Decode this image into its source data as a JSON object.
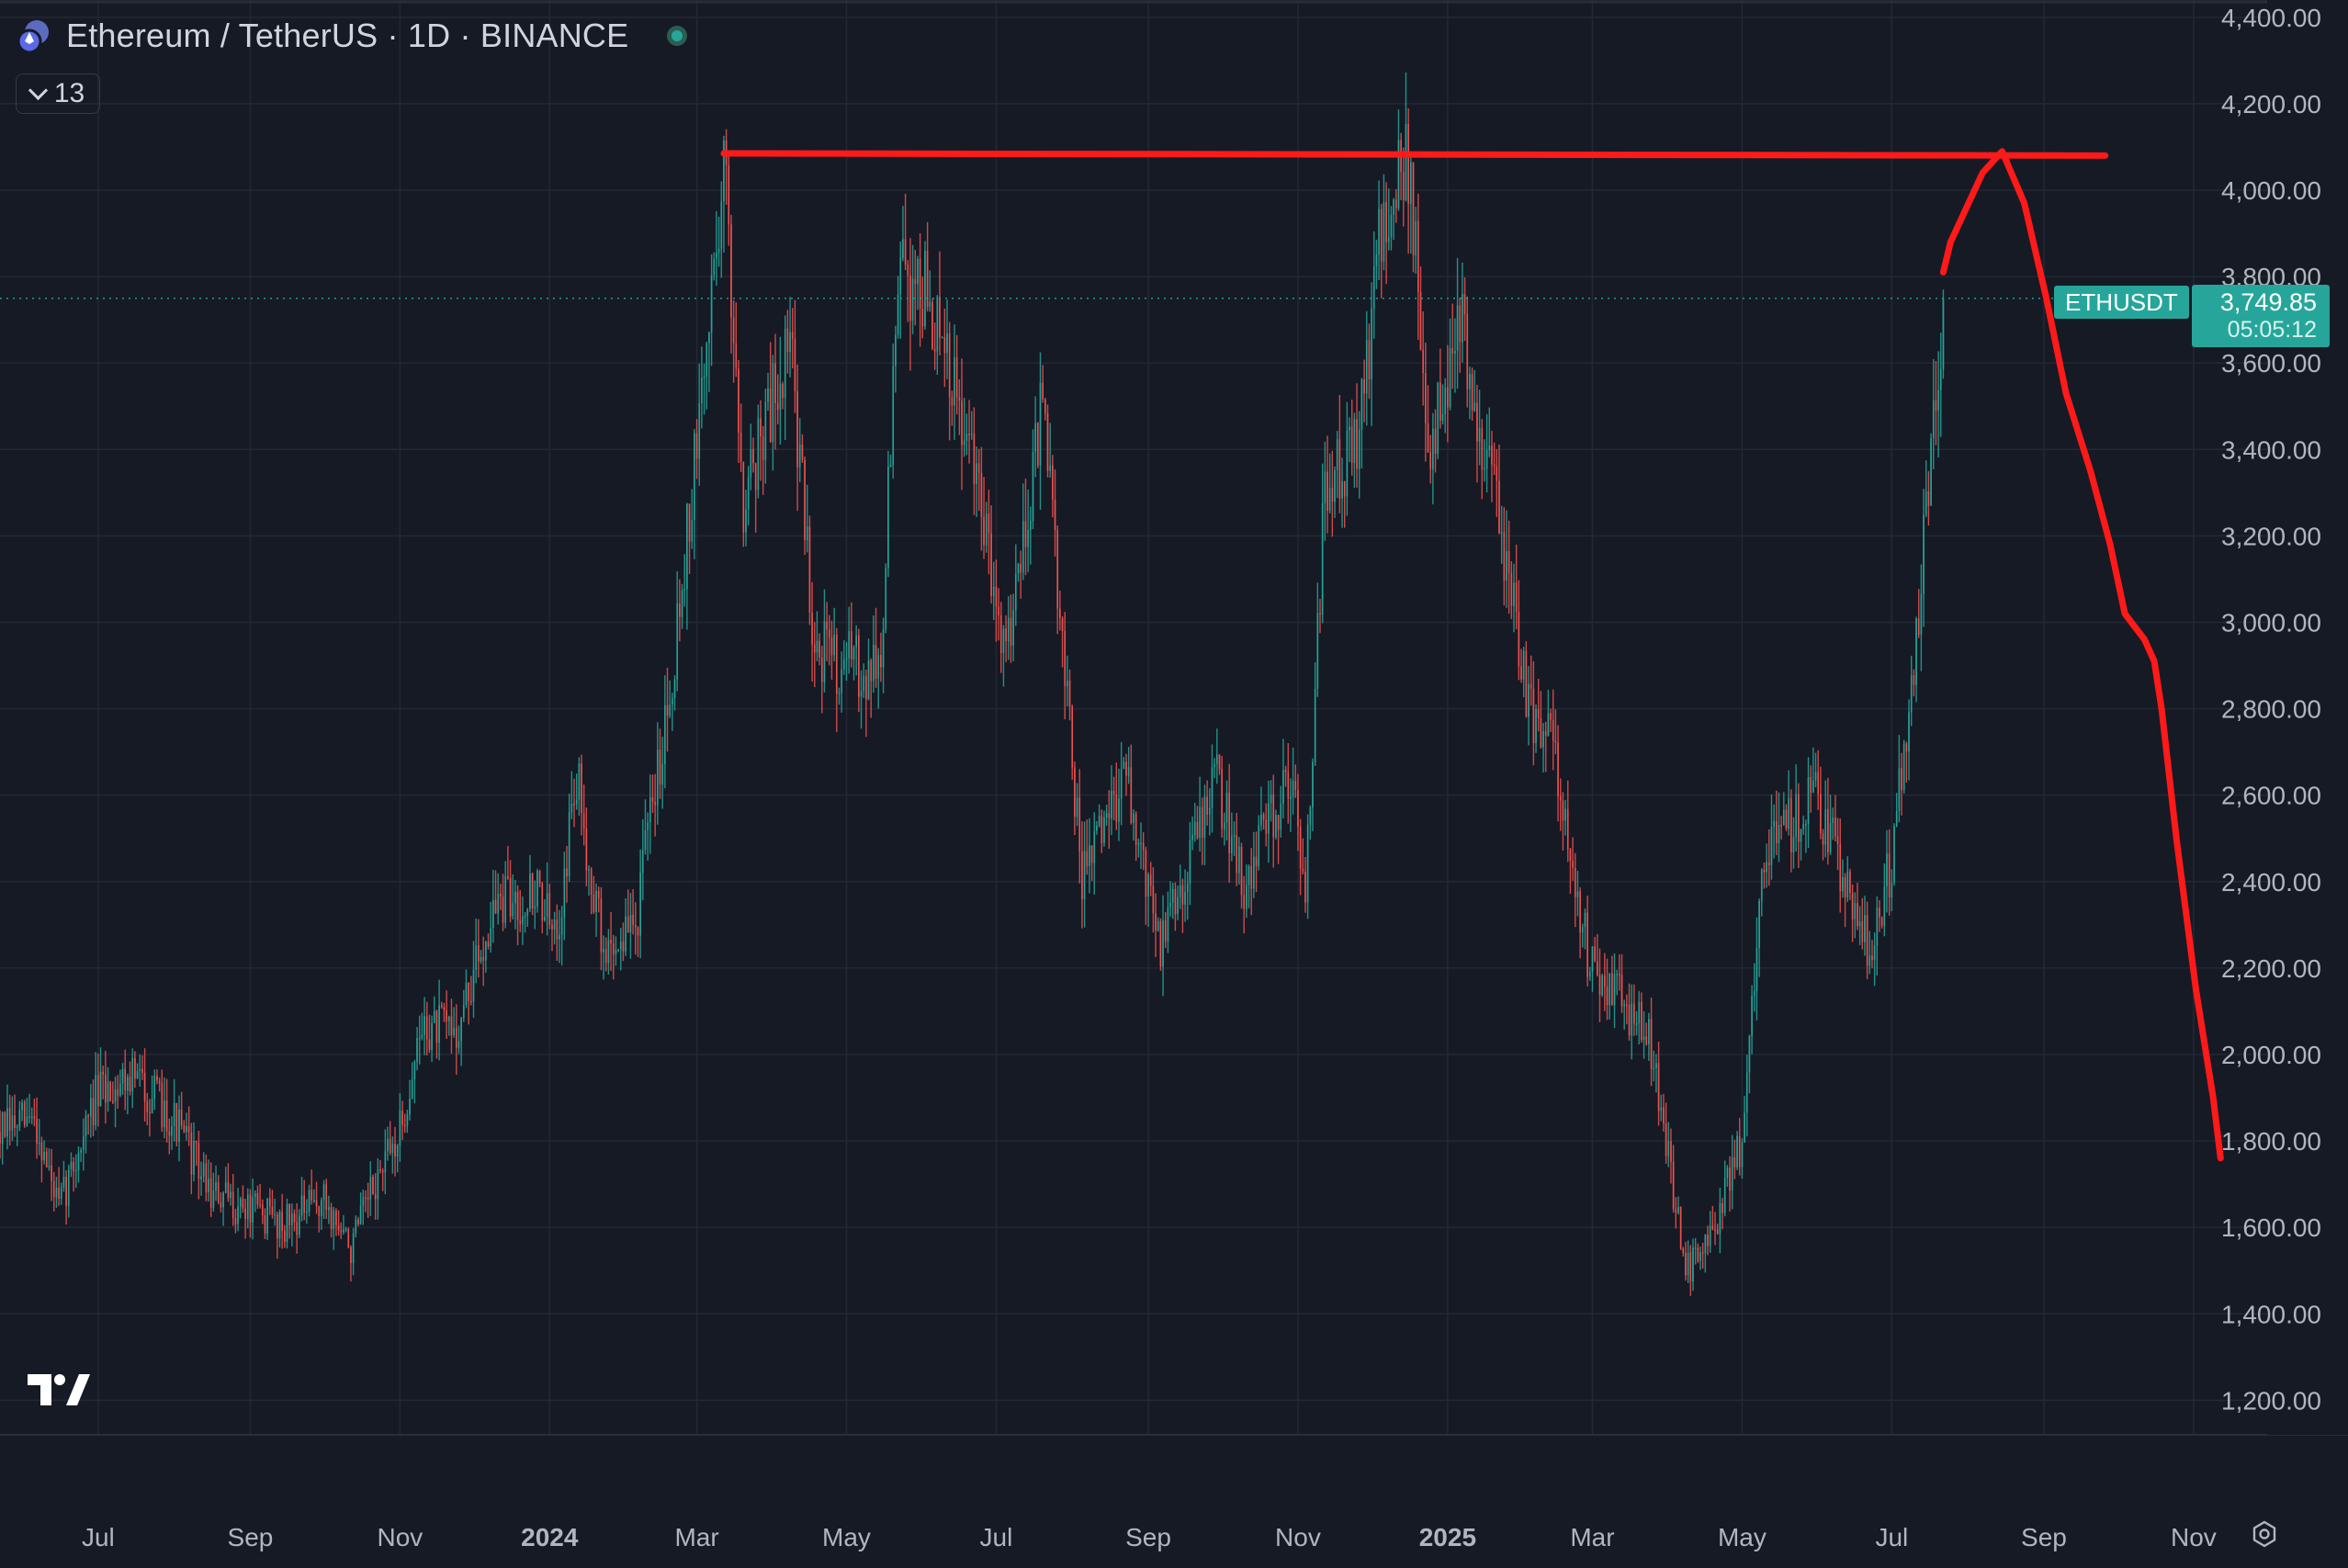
{
  "header": {
    "title": "Ethereum / TetherUS · 1D · BINANCE",
    "indicator_count": "13"
  },
  "price_label": {
    "symbol": "ETHUSDT",
    "price": "3,749.85",
    "countdown": "05:05:12"
  },
  "colors": {
    "background": "#161a25",
    "grid": "#242834",
    "up": "#26a69a",
    "down": "#ef5350",
    "drawing": "#ff1a1a",
    "axis_text": "#b2b5be"
  },
  "chart_data": {
    "type": "candlestick",
    "interval": "1D",
    "exchange": "BINANCE",
    "last_price": 3749.85,
    "y_axis": {
      "range": [
        1120,
        4440
      ],
      "ticks": [
        1200,
        1400,
        1600,
        1800,
        2000,
        2200,
        2400,
        2600,
        2800,
        3000,
        3200,
        3400,
        3600,
        3800,
        4000,
        4200,
        4400
      ],
      "tick_labels": [
        "1,200.00",
        "1,400.00",
        "1,600.00",
        "1,800.00",
        "2,000.00",
        "2,200.00",
        "2,400.00",
        "2,600.00",
        "2,800.00",
        "3,000.00",
        "3,200.00",
        "3,400.00",
        "3,600.00",
        "3,800.00",
        "4,000.00",
        "4,200.00",
        "4,400.00"
      ]
    },
    "x_axis": {
      "range": [
        "2023-05-22",
        "2025-12-01"
      ],
      "ticks": [
        {
          "date": "2023-07-01",
          "label": "Jul",
          "bold": false
        },
        {
          "date": "2023-09-01",
          "label": "Sep",
          "bold": false
        },
        {
          "date": "2023-11-01",
          "label": "Nov",
          "bold": false
        },
        {
          "date": "2024-01-01",
          "label": "2024",
          "bold": true
        },
        {
          "date": "2024-03-01",
          "label": "Mar",
          "bold": false
        },
        {
          "date": "2024-05-01",
          "label": "May",
          "bold": false
        },
        {
          "date": "2024-07-01",
          "label": "Jul",
          "bold": false
        },
        {
          "date": "2024-09-01",
          "label": "Sep",
          "bold": false
        },
        {
          "date": "2024-11-01",
          "label": "Nov",
          "bold": false
        },
        {
          "date": "2025-01-01",
          "label": "2025",
          "bold": true
        },
        {
          "date": "2025-03-01",
          "label": "Mar",
          "bold": false
        },
        {
          "date": "2025-05-01",
          "label": "May",
          "bold": false
        },
        {
          "date": "2025-07-01",
          "label": "Jul",
          "bold": false
        },
        {
          "date": "2025-09-01",
          "label": "Sep",
          "bold": false
        },
        {
          "date": "2025-11-01",
          "label": "Nov",
          "bold": false
        }
      ]
    },
    "series": [
      {
        "kind": "close_path",
        "points": [
          [
            "2023-05-22",
            1820
          ],
          [
            "2023-06-05",
            1850
          ],
          [
            "2023-06-15",
            1640
          ],
          [
            "2023-06-30",
            1900
          ],
          [
            "2023-07-14",
            1960
          ],
          [
            "2023-08-01",
            1850
          ],
          [
            "2023-08-17",
            1670
          ],
          [
            "2023-09-01",
            1640
          ],
          [
            "2023-09-15",
            1610
          ],
          [
            "2023-10-01",
            1660
          ],
          [
            "2023-10-12",
            1550
          ],
          [
            "2023-10-22",
            1700
          ],
          [
            "2023-11-01",
            1820
          ],
          [
            "2023-11-10",
            2060
          ],
          [
            "2023-11-25",
            2060
          ],
          [
            "2023-12-09",
            2340
          ],
          [
            "2023-12-28",
            2380
          ],
          [
            "2024-01-03",
            2250
          ],
          [
            "2024-01-12",
            2640
          ],
          [
            "2024-01-23",
            2230
          ],
          [
            "2024-02-05",
            2300
          ],
          [
            "2024-02-20",
            2900
          ],
          [
            "2024-03-01",
            3400
          ],
          [
            "2024-03-12",
            4070
          ],
          [
            "2024-03-20",
            3300
          ],
          [
            "2024-04-08",
            3650
          ],
          [
            "2024-04-18",
            2950
          ],
          [
            "2024-05-01",
            2900
          ],
          [
            "2024-05-15",
            2900
          ],
          [
            "2024-05-22",
            3800
          ],
          [
            "2024-06-01",
            3780
          ],
          [
            "2024-06-20",
            3400
          ],
          [
            "2024-07-05",
            2950
          ],
          [
            "2024-07-20",
            3500
          ],
          [
            "2024-08-05",
            2400
          ],
          [
            "2024-08-22",
            2650
          ],
          [
            "2024-09-06",
            2250
          ],
          [
            "2024-09-28",
            2650
          ],
          [
            "2024-10-10",
            2400
          ],
          [
            "2024-10-29",
            2650
          ],
          [
            "2024-11-04",
            2400
          ],
          [
            "2024-11-12",
            3300
          ],
          [
            "2024-11-25",
            3400
          ],
          [
            "2024-12-06",
            3950
          ],
          [
            "2024-12-16",
            4050
          ],
          [
            "2024-12-25",
            3400
          ],
          [
            "2025-01-06",
            3700
          ],
          [
            "2025-01-20",
            3300
          ],
          [
            "2025-02-03",
            2800
          ],
          [
            "2025-02-14",
            2700
          ],
          [
            "2025-02-28",
            2200
          ],
          [
            "2025-03-24",
            2050
          ],
          [
            "2025-04-08",
            1500
          ],
          [
            "2025-04-20",
            1600
          ],
          [
            "2025-05-01",
            1800
          ],
          [
            "2025-05-09",
            2450
          ],
          [
            "2025-05-31",
            2600
          ],
          [
            "2025-06-22",
            2250
          ],
          [
            "2025-07-01",
            2450
          ],
          [
            "2025-07-11",
            2950
          ],
          [
            "2025-07-22",
            3750
          ]
        ]
      }
    ],
    "annotations": [
      {
        "kind": "horizontal_line",
        "from": [
          "2024-03-12",
          4085
        ],
        "to": [
          "2025-09-26",
          4080
        ]
      },
      {
        "kind": "freehand_path",
        "points": [
          [
            "2025-07-22",
            3810
          ],
          [
            "2025-07-25",
            3880
          ],
          [
            "2025-08-07",
            4040
          ],
          [
            "2025-08-15",
            4090
          ],
          [
            "2025-08-24",
            3970
          ],
          [
            "2025-09-02",
            3750
          ],
          [
            "2025-09-10",
            3530
          ],
          [
            "2025-09-20",
            3350
          ],
          [
            "2025-09-28",
            3180
          ],
          [
            "2025-10-04",
            3020
          ],
          [
            "2025-10-12",
            2960
          ],
          [
            "2025-10-16",
            2910
          ],
          [
            "2025-10-19",
            2800
          ],
          [
            "2025-10-25",
            2500
          ],
          [
            "2025-11-02",
            2150
          ],
          [
            "2025-11-09",
            1900
          ],
          [
            "2025-11-12",
            1760
          ]
        ]
      }
    ]
  }
}
